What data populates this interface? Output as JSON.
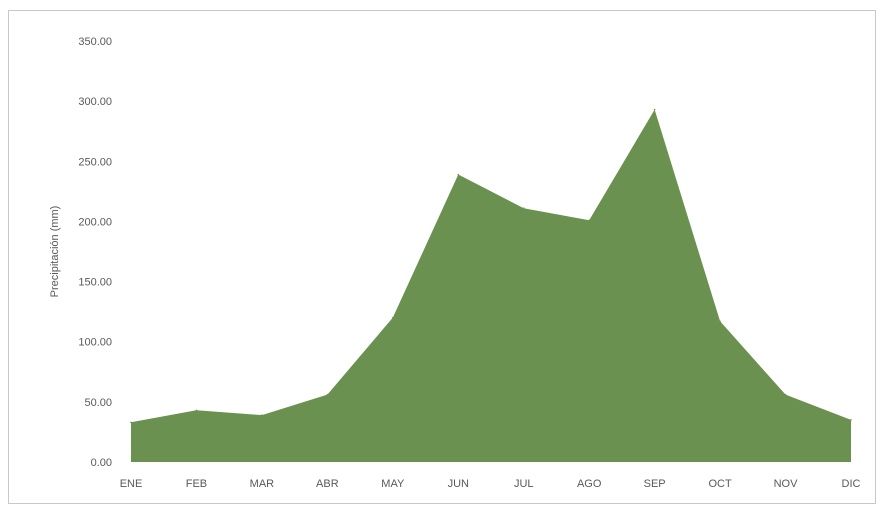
{
  "chart_data": {
    "type": "area",
    "title": "",
    "xlabel": "",
    "ylabel": "Precipitación (mm)",
    "categories": [
      "ENE",
      "FEB",
      "MAR",
      "ABR",
      "MAY",
      "JUN",
      "JUL",
      "AGO",
      "SEP",
      "OCT",
      "NOV",
      "DIC"
    ],
    "series": [
      {
        "values": [
          33,
          43,
          39,
          56,
          120,
          239,
          211,
          201,
          293,
          117,
          56,
          35
        ]
      }
    ],
    "ylim": [
      0,
      350
    ],
    "yticks": [
      "0.00",
      "50.00",
      "100.00",
      "150.00",
      "200.00",
      "250.00",
      "300.00",
      "350.00"
    ],
    "grid": false,
    "legend": "none",
    "fill_color": "#6a914f",
    "text_color": "#595959"
  }
}
